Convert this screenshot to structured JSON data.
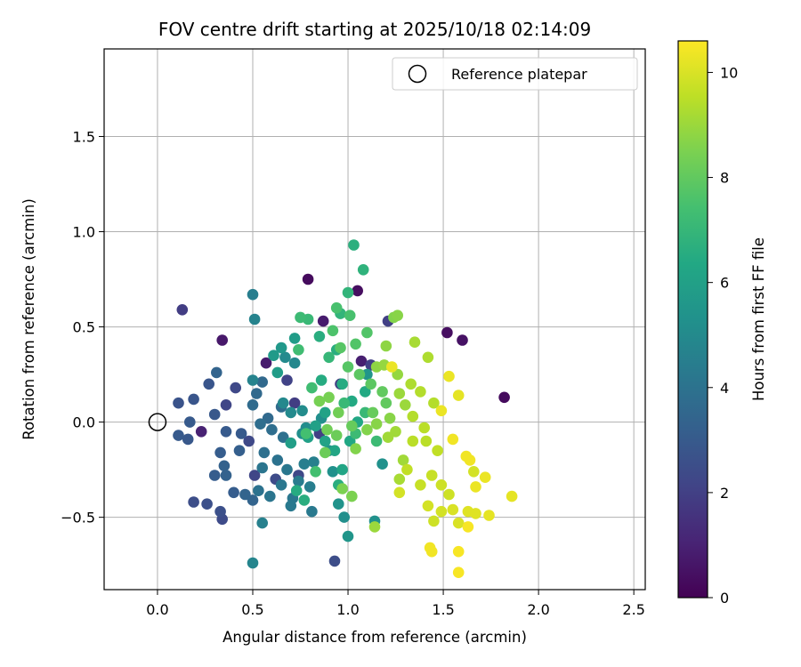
{
  "chart_data": {
    "type": "scatter",
    "title": "FOV centre drift starting at 2025/10/18 02:14:09",
    "xlabel": "Angular distance from reference (arcmin)",
    "ylabel": "Rotation from reference (arcmin)",
    "xlim": [
      -0.28,
      2.56
    ],
    "ylim": [
      -0.88,
      1.96
    ],
    "xticks": [
      0.0,
      0.5,
      1.0,
      1.5,
      2.0,
      2.5
    ],
    "xtick_labels": [
      "0.0",
      "0.5",
      "1.0",
      "1.5",
      "2.0",
      "2.5"
    ],
    "yticks": [
      -0.5,
      0.0,
      0.5,
      1.0,
      1.5
    ],
    "ytick_labels": [
      "−0.5",
      "0.0",
      "0.5",
      "1.0",
      "1.5"
    ],
    "grid": true,
    "legend": {
      "position": "top-right",
      "entries": [
        {
          "label": "Reference platepar",
          "marker": "open-circle",
          "x": 0.0,
          "y": 0.0
        }
      ]
    },
    "colorbar": {
      "label": "Hours from first FF file",
      "colormap": "viridis",
      "min": 0,
      "max": 10.6,
      "ticks": [
        0,
        2,
        4,
        6,
        8,
        10
      ],
      "tick_labels": [
        "0",
        "2",
        "4",
        "6",
        "8",
        "10"
      ]
    },
    "point_columns": [
      "x",
      "y",
      "hours"
    ],
    "points": [
      [
        0.79,
        0.75,
        0.3
      ],
      [
        1.05,
        0.69,
        0.4
      ],
      [
        0.34,
        0.43,
        0.7
      ],
      [
        0.57,
        0.31,
        0.8
      ],
      [
        1.52,
        0.47,
        0.4
      ],
      [
        1.6,
        0.43,
        0.5
      ],
      [
        1.82,
        0.13,
        0.3
      ],
      [
        0.87,
        0.53,
        0.8
      ],
      [
        1.07,
        0.32,
        0.9
      ],
      [
        0.23,
        -0.05,
        1.0
      ],
      [
        0.13,
        0.59,
        1.9
      ],
      [
        0.72,
        0.1,
        1.9
      ],
      [
        0.96,
        0.2,
        1.9
      ],
      [
        0.85,
        -0.06,
        2.0
      ],
      [
        1.12,
        0.3,
        2.0
      ],
      [
        1.21,
        0.53,
        2.0
      ],
      [
        0.36,
        0.09,
        2.2
      ],
      [
        0.48,
        -0.1,
        2.3
      ],
      [
        0.41,
        0.18,
        2.3
      ],
      [
        0.62,
        -0.3,
        2.4
      ],
      [
        0.74,
        -0.28,
        2.3
      ],
      [
        0.68,
        0.22,
        2.1
      ],
      [
        0.51,
        -0.28,
        2.2
      ],
      [
        0.93,
        -0.73,
        2.5
      ],
      [
        0.34,
        -0.51,
        2.4
      ],
      [
        0.33,
        -0.47,
        2.6
      ],
      [
        0.19,
        -0.42,
        2.5
      ],
      [
        0.26,
        -0.43,
        2.6
      ],
      [
        0.11,
        0.1,
        2.7
      ],
      [
        0.19,
        0.12,
        2.8
      ],
      [
        0.16,
        -0.09,
        2.9
      ],
      [
        0.11,
        -0.07,
        3.0
      ],
      [
        0.17,
        0.0,
        3.0
      ],
      [
        0.27,
        0.2,
        2.8
      ],
      [
        0.3,
        0.04,
        2.9
      ],
      [
        0.36,
        -0.05,
        3.0
      ],
      [
        0.44,
        -0.06,
        3.0
      ],
      [
        0.43,
        -0.15,
        3.2
      ],
      [
        0.33,
        -0.16,
        3.1
      ],
      [
        0.3,
        -0.28,
        3.1
      ],
      [
        0.35,
        -0.23,
        3.3
      ],
      [
        0.4,
        -0.37,
        3.1
      ],
      [
        0.46,
        -0.38,
        3.4
      ],
      [
        0.5,
        -0.41,
        3.4
      ],
      [
        0.36,
        -0.28,
        3.3
      ],
      [
        0.31,
        0.26,
        3.4
      ],
      [
        0.52,
        0.15,
        3.6
      ],
      [
        0.55,
        0.21,
        3.6
      ],
      [
        0.5,
        0.09,
        3.7
      ],
      [
        0.58,
        0.02,
        3.6
      ],
      [
        0.65,
        0.08,
        3.7
      ],
      [
        0.54,
        -0.01,
        3.8
      ],
      [
        0.6,
        -0.04,
        3.8
      ],
      [
        0.66,
        -0.08,
        3.9
      ],
      [
        0.56,
        -0.16,
        3.9
      ],
      [
        0.63,
        -0.2,
        4.0
      ],
      [
        0.55,
        -0.24,
        4.1
      ],
      [
        0.68,
        -0.25,
        4.2
      ],
      [
        0.53,
        -0.36,
        4.0
      ],
      [
        0.59,
        -0.39,
        4.1
      ],
      [
        0.65,
        -0.33,
        4.2
      ],
      [
        0.71,
        -0.4,
        4.2
      ],
      [
        0.7,
        -0.44,
        4.3
      ],
      [
        0.81,
        -0.47,
        4.3
      ],
      [
        0.74,
        -0.31,
        4.4
      ],
      [
        0.77,
        -0.22,
        4.5
      ],
      [
        0.82,
        -0.21,
        4.6
      ],
      [
        0.8,
        -0.34,
        4.5
      ],
      [
        0.5,
        0.67,
        4.5
      ],
      [
        0.5,
        0.22,
        4.7
      ],
      [
        0.51,
        0.54,
        4.7
      ],
      [
        0.55,
        -0.53,
        4.6
      ],
      [
        0.5,
        -0.74,
        4.8
      ],
      [
        0.72,
        0.31,
        4.9
      ],
      [
        0.67,
        0.34,
        5.0
      ],
      [
        0.66,
        0.1,
        4.9
      ],
      [
        0.7,
        0.05,
        5.0
      ],
      [
        0.76,
        0.06,
        5.1
      ],
      [
        0.76,
        -0.06,
        5.2
      ],
      [
        0.78,
        -0.03,
        5.1
      ],
      [
        0.86,
        0.02,
        5.2
      ],
      [
        0.9,
        -0.15,
        5.2
      ],
      [
        0.92,
        -0.26,
        5.3
      ],
      [
        0.98,
        -0.5,
        5.2
      ],
      [
        0.95,
        -0.43,
        5.4
      ],
      [
        1.14,
        -0.52,
        5.3
      ],
      [
        1.0,
        -0.6,
        5.5
      ],
      [
        1.18,
        -0.22,
        5.3
      ],
      [
        1.1,
        0.25,
        5.5
      ],
      [
        0.65,
        0.39,
        5.6
      ],
      [
        0.61,
        0.35,
        5.7
      ],
      [
        0.63,
        0.26,
        5.8
      ],
      [
        0.72,
        0.44,
        5.8
      ],
      [
        0.7,
        -0.11,
        5.9
      ],
      [
        0.79,
        -0.08,
        6.0
      ],
      [
        0.83,
        -0.02,
        6.0
      ],
      [
        0.88,
        0.05,
        6.1
      ],
      [
        0.88,
        -0.1,
        6.1
      ],
      [
        0.93,
        -0.15,
        6.2
      ],
      [
        0.97,
        -0.25,
        6.2
      ],
      [
        1.01,
        -0.1,
        6.3
      ],
      [
        1.05,
        0.0,
        6.3
      ],
      [
        1.02,
        0.11,
        6.4
      ],
      [
        1.09,
        0.16,
        6.4
      ],
      [
        0.97,
        0.2,
        6.5
      ],
      [
        0.86,
        0.22,
        6.5
      ],
      [
        0.94,
        0.38,
        6.6
      ],
      [
        0.85,
        0.45,
        6.6
      ],
      [
        0.73,
        -0.36,
        6.5
      ],
      [
        0.77,
        -0.41,
        6.6
      ],
      [
        0.95,
        -0.33,
        6.6
      ],
      [
        1.03,
        0.93,
        6.7
      ],
      [
        1.08,
        0.8,
        6.8
      ],
      [
        1.0,
        0.68,
        6.9
      ],
      [
        0.96,
        0.57,
        6.9
      ],
      [
        0.9,
        0.34,
        7.0
      ],
      [
        0.98,
        0.1,
        7.1
      ],
      [
        1.09,
        0.05,
        7.1
      ],
      [
        1.04,
        -0.06,
        7.2
      ],
      [
        1.15,
        -0.1,
        7.2
      ],
      [
        0.79,
        0.54,
        7.1
      ],
      [
        0.75,
        0.55,
        7.2
      ],
      [
        0.74,
        0.38,
        7.3
      ],
      [
        0.81,
        0.18,
        7.3
      ],
      [
        0.83,
        -0.26,
        7.4
      ],
      [
        0.78,
        -0.06,
        7.4
      ],
      [
        0.94,
        0.6,
        7.5
      ],
      [
        1.01,
        0.56,
        7.5
      ],
      [
        0.92,
        0.48,
        7.6
      ],
      [
        1.1,
        0.47,
        7.7
      ],
      [
        1.04,
        0.41,
        7.7
      ],
      [
        0.96,
        0.39,
        7.8
      ],
      [
        1.0,
        0.29,
        7.8
      ],
      [
        1.06,
        0.25,
        7.9
      ],
      [
        1.12,
        0.2,
        7.9
      ],
      [
        1.18,
        0.16,
        8.0
      ],
      [
        1.2,
        0.1,
        8.0
      ],
      [
        1.13,
        0.05,
        8.1
      ],
      [
        1.02,
        -0.02,
        8.1
      ],
      [
        0.94,
        -0.07,
        8.2
      ],
      [
        0.88,
        -0.16,
        8.2
      ],
      [
        0.89,
        -0.04,
        8.3
      ],
      [
        0.95,
        0.05,
        8.3
      ],
      [
        0.9,
        0.13,
        8.4
      ],
      [
        0.85,
        0.11,
        8.4
      ],
      [
        0.97,
        -0.35,
        8.5
      ],
      [
        1.02,
        -0.39,
        8.5
      ],
      [
        1.04,
        -0.14,
        8.6
      ],
      [
        1.1,
        -0.04,
        8.6
      ],
      [
        1.15,
        -0.01,
        8.7
      ],
      [
        1.22,
        0.02,
        8.7
      ],
      [
        1.24,
        0.55,
        8.6
      ],
      [
        1.26,
        0.56,
        8.7
      ],
      [
        1.2,
        0.4,
        8.8
      ],
      [
        1.15,
        0.29,
        8.8
      ],
      [
        1.19,
        0.3,
        8.9
      ],
      [
        1.26,
        0.25,
        8.9
      ],
      [
        1.27,
        0.15,
        9.0
      ],
      [
        1.3,
        0.09,
        9.0
      ],
      [
        1.25,
        -0.05,
        9.1
      ],
      [
        1.21,
        -0.08,
        9.1
      ],
      [
        1.14,
        -0.55,
        9.0
      ],
      [
        1.29,
        -0.2,
        9.1
      ],
      [
        1.27,
        -0.3,
        9.2
      ],
      [
        1.35,
        0.42,
        9.2
      ],
      [
        1.42,
        0.34,
        9.3
      ],
      [
        1.33,
        0.2,
        9.3
      ],
      [
        1.38,
        0.16,
        9.4
      ],
      [
        1.45,
        0.1,
        9.4
      ],
      [
        1.34,
        0.03,
        9.4
      ],
      [
        1.4,
        -0.03,
        9.5
      ],
      [
        1.34,
        -0.1,
        9.5
      ],
      [
        1.41,
        -0.1,
        9.5
      ],
      [
        1.47,
        -0.15,
        9.6
      ],
      [
        1.31,
        -0.25,
        9.6
      ],
      [
        1.38,
        -0.33,
        9.7
      ],
      [
        1.44,
        -0.28,
        9.7
      ],
      [
        1.49,
        -0.33,
        9.8
      ],
      [
        1.53,
        -0.38,
        9.8
      ],
      [
        1.42,
        -0.44,
        9.9
      ],
      [
        1.49,
        -0.47,
        9.9
      ],
      [
        1.55,
        -0.46,
        10.0
      ],
      [
        1.58,
        -0.53,
        10.0
      ],
      [
        1.63,
        -0.47,
        10.1
      ],
      [
        1.67,
        -0.48,
        10.1
      ],
      [
        1.74,
        -0.49,
        10.2
      ],
      [
        1.86,
        -0.39,
        10.2
      ],
      [
        1.67,
        -0.34,
        10.3
      ],
      [
        1.72,
        -0.29,
        10.3
      ],
      [
        1.64,
        -0.2,
        10.4
      ],
      [
        1.55,
        -0.09,
        10.4
      ],
      [
        1.62,
        -0.18,
        10.4
      ],
      [
        1.53,
        0.24,
        10.3
      ],
      [
        1.58,
        0.14,
        10.2
      ],
      [
        1.49,
        0.06,
        10.3
      ],
      [
        1.43,
        -0.66,
        10.4
      ],
      [
        1.44,
        -0.68,
        10.4
      ],
      [
        1.58,
        -0.68,
        10.5
      ],
      [
        1.63,
        -0.55,
        10.5
      ],
      [
        1.58,
        -0.79,
        10.5
      ],
      [
        1.23,
        0.29,
        10.3
      ],
      [
        1.27,
        -0.37,
        9.9
      ],
      [
        1.45,
        -0.52,
        9.8
      ],
      [
        1.66,
        -0.26,
        9.9
      ]
    ]
  }
}
